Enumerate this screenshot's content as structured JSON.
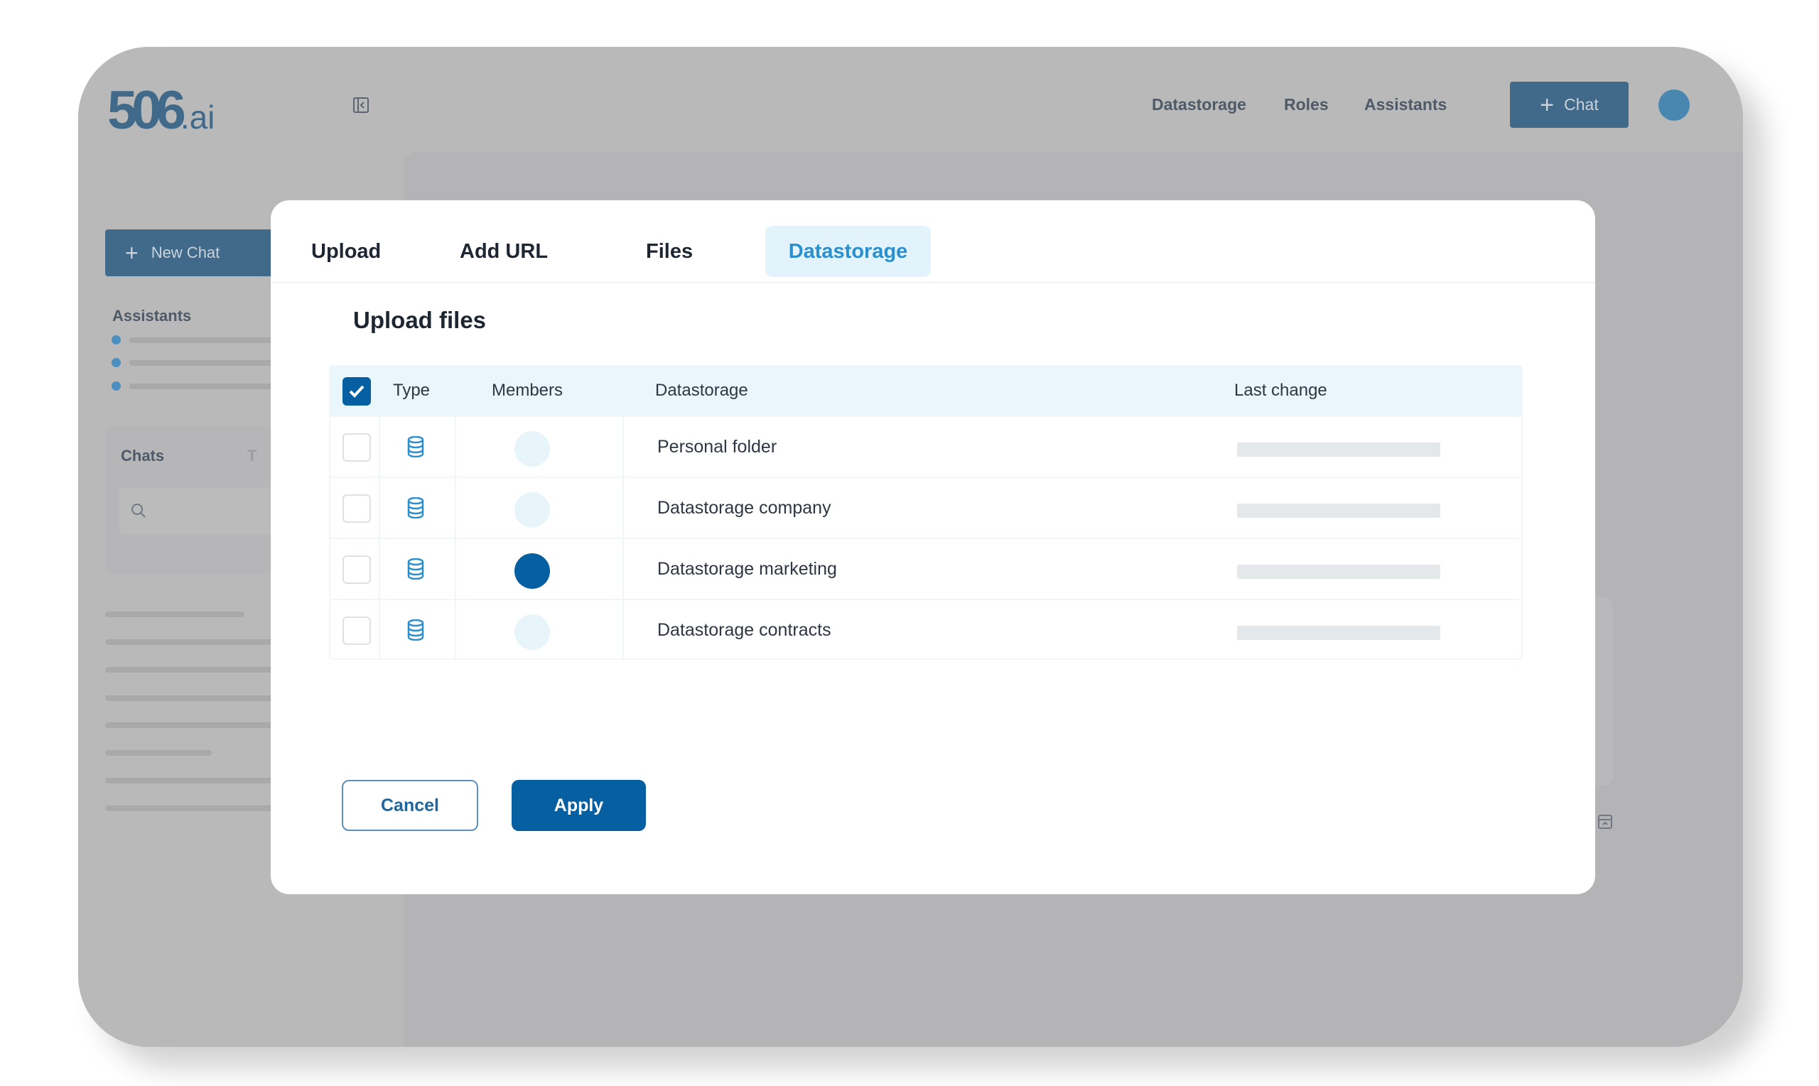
{
  "app": {
    "logo": "506",
    "logo_suffix": ".ai"
  },
  "header": {
    "nav": [
      "Datastorage",
      "Roles",
      "Assistants"
    ],
    "chat_button": "Chat"
  },
  "sidebar": {
    "new_chat": "New Chat",
    "assistants_label": "Assistants",
    "chats_label": "Chats",
    "chats_tab_partial": "T"
  },
  "modal": {
    "tabs": [
      {
        "label": "Upload",
        "active": false
      },
      {
        "label": "Add URL",
        "active": false
      },
      {
        "label": "Files",
        "active": false
      },
      {
        "label": "Datastorage",
        "active": true
      }
    ],
    "title": "Upload files",
    "table": {
      "select_all_checked": true,
      "columns": [
        "Type",
        "Members",
        "Datastorage",
        "Last change"
      ],
      "rows": [
        {
          "type": "database-icon",
          "member_active": false,
          "name": "Personal folder",
          "checked": false
        },
        {
          "type": "database-icon",
          "member_active": false,
          "name": "Datastorage company",
          "checked": false
        },
        {
          "type": "database-icon",
          "member_active": true,
          "name": "Datastorage marketing",
          "checked": false
        },
        {
          "type": "database-icon",
          "member_active": false,
          "name": "Datastorage contracts",
          "checked": false
        }
      ]
    },
    "cancel": "Cancel",
    "apply": "Apply"
  },
  "colors": {
    "primary": "#055fa0",
    "accent": "#2b8fce",
    "tab_active_bg": "#e3f3fb",
    "header_row_bg": "#e9f6fc"
  }
}
